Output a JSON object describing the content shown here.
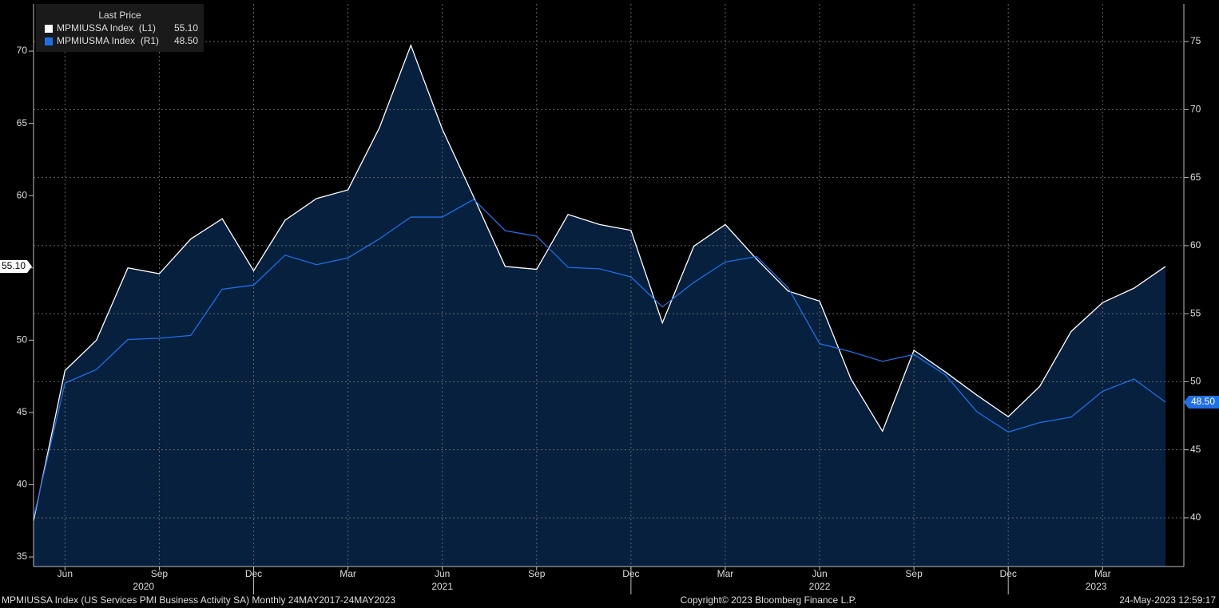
{
  "chart_data": {
    "type": "line",
    "legend_title": "Last Price",
    "categories": [
      null,
      "Jun",
      null,
      null,
      "Sep",
      null,
      null,
      "Dec",
      null,
      null,
      "Mar",
      null,
      null,
      "Jun",
      null,
      null,
      "Sep",
      null,
      null,
      "Dec",
      null,
      null,
      "Mar",
      null,
      null,
      "Jun",
      null,
      null,
      "Sep",
      null,
      null,
      "Dec",
      null,
      null,
      "Mar",
      null,
      null
    ],
    "years": [
      "2020",
      "2021",
      "2022",
      "2023"
    ],
    "series": [
      {
        "name": "MPMIUSSA Index  (L1)",
        "color": "#ffffff",
        "last_label": "55.10",
        "values": [
          37.5,
          47.9,
          50.0,
          55.0,
          54.6,
          57.0,
          58.4,
          54.8,
          58.3,
          59.8,
          60.4,
          64.7,
          70.4,
          64.6,
          59.9,
          55.1,
          54.9,
          58.7,
          58.0,
          57.6,
          51.2,
          56.5,
          58.0,
          55.6,
          53.4,
          52.7,
          47.3,
          43.7,
          49.3,
          47.8,
          46.2,
          44.7,
          46.8,
          50.6,
          52.6,
          53.6,
          55.1
        ]
      },
      {
        "name": "MPMIUSMA Index  (R1)",
        "color": "#1f6fe5",
        "axis": "y2",
        "last_label": "48.50",
        "values": [
          40.0,
          49.9,
          50.9,
          53.1,
          53.2,
          53.4,
          56.8,
          57.1,
          59.3,
          58.6,
          59.1,
          60.5,
          62.1,
          62.1,
          63.4,
          61.1,
          60.7,
          58.4,
          58.3,
          57.7,
          55.5,
          57.3,
          58.8,
          59.2,
          56.9,
          52.8,
          52.2,
          51.5,
          52.0,
          50.5,
          47.8,
          46.3,
          47.0,
          47.4,
          49.3,
          50.2,
          48.5
        ]
      }
    ],
    "ylim": [
      34.34,
      73.26
    ],
    "yticks": [
      35,
      40,
      45,
      50,
      55,
      60,
      65,
      70
    ],
    "y2lim": [
      36.42,
      77.76
    ],
    "y2ticks": [
      40,
      45,
      50,
      55,
      60,
      65,
      70,
      75
    ],
    "grid": true,
    "area_fill": "#06203e"
  },
  "footer": {
    "left": "MPMIUSSA Index (US Services PMI Business Activity SA)  Monthly 24MAY2017-24MAY2023",
    "center": "Copyright© 2023 Bloomberg Finance L.P.",
    "right": "24-May-2023 12:59:17"
  }
}
